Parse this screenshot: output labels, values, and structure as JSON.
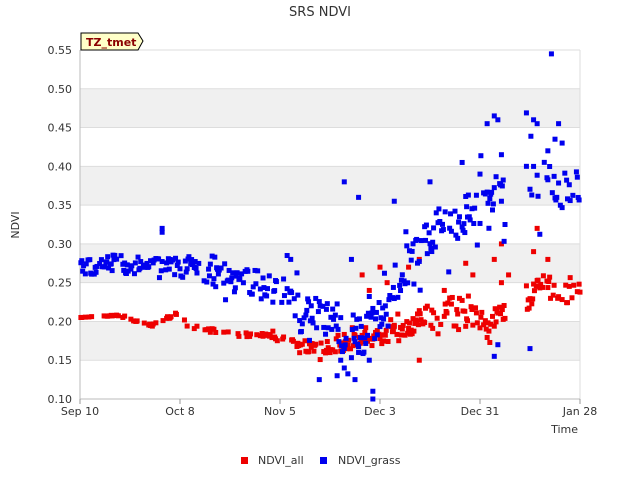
{
  "chart_data": {
    "type": "scatter",
    "title": "SRS NDVI",
    "xlabel": "Time",
    "ylabel": "NDVI",
    "badge": "TZ_tmet",
    "ylim": [
      0.1,
      0.55
    ],
    "yticks": [
      0.1,
      0.15,
      0.2,
      0.25,
      0.3,
      0.35,
      0.4,
      0.45,
      0.5,
      0.55
    ],
    "ytick_labels": [
      "0.10",
      "0.15",
      "0.20",
      "0.25",
      "0.30",
      "0.35",
      "0.40",
      "0.45",
      "0.50",
      "0.55"
    ],
    "xlim_days": [
      0,
      140
    ],
    "xticks": [
      {
        "day": 0,
        "label": "Sep 10"
      },
      {
        "day": 28,
        "label": "Oct 8"
      },
      {
        "day": 56,
        "label": "Nov 5"
      },
      {
        "day": 84,
        "label": "Dec 3"
      },
      {
        "day": 112,
        "label": "Dec 31"
      },
      {
        "day": 140,
        "label": "Jan 28"
      }
    ],
    "background_bands": true,
    "series": [
      {
        "name": "NDVI_all",
        "color": "#ee0000",
        "trend": [
          [
            0,
            0.205
          ],
          [
            10,
            0.208
          ],
          [
            20,
            0.195
          ],
          [
            28,
            0.21
          ],
          [
            30,
            0.195
          ],
          [
            40,
            0.185
          ],
          [
            50,
            0.182
          ],
          [
            56,
            0.178
          ],
          [
            63,
            0.168
          ],
          [
            70,
            0.168
          ],
          [
            78,
            0.175
          ],
          [
            84,
            0.18
          ],
          [
            88,
            0.185
          ],
          [
            92,
            0.19
          ],
          [
            96,
            0.21
          ],
          [
            100,
            0.205
          ],
          [
            105,
            0.225
          ],
          [
            110,
            0.205
          ],
          [
            115,
            0.2
          ],
          [
            118,
            0.205
          ],
          [
            120,
            0.22
          ],
          [
            125,
            0.23
          ],
          [
            130,
            0.25
          ],
          [
            135,
            0.24
          ],
          [
            140,
            0.23
          ]
        ],
        "band": [
          0,
          0.018,
          0.025,
          0.045
        ],
        "gap": [
          119,
          125
        ],
        "extras": [
          [
            88,
            0.195
          ],
          [
            92,
            0.27
          ],
          [
            95,
            0.28
          ],
          [
            95,
            0.15
          ],
          [
            86,
            0.25
          ],
          [
            108,
            0.275
          ],
          [
            110,
            0.26
          ],
          [
            116,
            0.28
          ],
          [
            118,
            0.3
          ],
          [
            118,
            0.25
          ],
          [
            128,
            0.32
          ],
          [
            127,
            0.29
          ],
          [
            131,
            0.28
          ],
          [
            120,
            0.26
          ],
          [
            79,
            0.26
          ],
          [
            81,
            0.24
          ],
          [
            84,
            0.27
          ],
          [
            102,
            0.24
          ]
        ]
      },
      {
        "name": "NDVI_grass",
        "color": "#0000ee",
        "trend": [
          [
            0,
            0.268
          ],
          [
            10,
            0.275
          ],
          [
            20,
            0.27
          ],
          [
            28,
            0.27
          ],
          [
            35,
            0.265
          ],
          [
            42,
            0.255
          ],
          [
            50,
            0.248
          ],
          [
            56,
            0.24
          ],
          [
            63,
            0.215
          ],
          [
            70,
            0.2
          ],
          [
            74,
            0.175
          ],
          [
            78,
            0.17
          ],
          [
            82,
            0.195
          ],
          [
            86,
            0.215
          ],
          [
            90,
            0.26
          ],
          [
            95,
            0.285
          ],
          [
            100,
            0.32
          ],
          [
            105,
            0.33
          ],
          [
            110,
            0.345
          ],
          [
            115,
            0.35
          ],
          [
            118,
            0.37
          ],
          [
            125,
            0.4
          ],
          [
            130,
            0.385
          ],
          [
            135,
            0.37
          ],
          [
            140,
            0.39
          ]
        ],
        "band": [
          0.01,
          0.035,
          0.05,
          0.065
        ],
        "gap": [
          119,
          125
        ],
        "extras": [
          [
            67,
            0.125
          ],
          [
            72,
            0.13
          ],
          [
            74,
            0.14
          ],
          [
            77,
            0.125
          ],
          [
            78,
            0.16
          ],
          [
            82,
            0.11
          ],
          [
            82,
            0.1
          ],
          [
            81,
            0.15
          ],
          [
            73,
            0.15
          ],
          [
            74,
            0.38
          ],
          [
            78,
            0.36
          ],
          [
            88,
            0.355
          ],
          [
            98,
            0.38
          ],
          [
            107,
            0.405
          ],
          [
            112,
            0.39
          ],
          [
            118,
            0.355
          ],
          [
            118,
            0.415
          ],
          [
            116,
            0.155
          ],
          [
            117,
            0.17
          ],
          [
            119,
            0.325
          ],
          [
            128,
            0.455
          ],
          [
            131,
            0.42
          ],
          [
            133,
            0.435
          ],
          [
            134,
            0.455
          ],
          [
            135,
            0.43
          ],
          [
            132,
            0.545
          ],
          [
            126,
            0.165
          ],
          [
            114,
            0.455
          ],
          [
            116,
            0.465
          ],
          [
            117,
            0.46
          ],
          [
            127,
            0.46
          ],
          [
            125,
            0.4
          ],
          [
            23,
            0.315
          ],
          [
            23,
            0.32
          ],
          [
            58,
            0.285
          ],
          [
            59,
            0.28
          ],
          [
            76,
            0.28
          ]
        ]
      }
    ],
    "legend": {
      "position": "bottom-center",
      "entries": [
        "NDVI_all",
        "NDVI_grass"
      ]
    }
  }
}
